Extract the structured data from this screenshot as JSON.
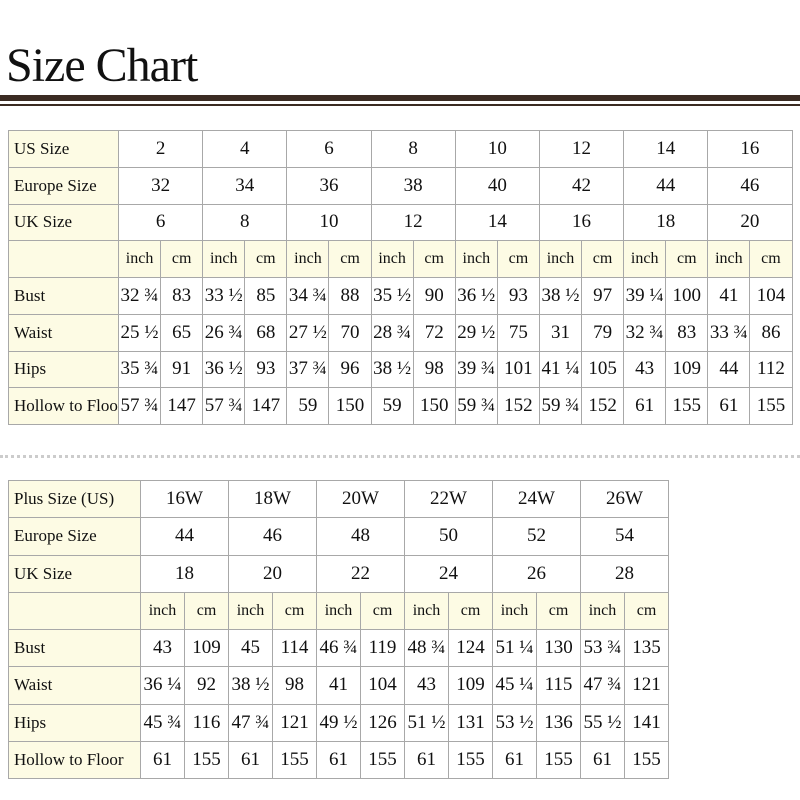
{
  "title": "Size Chart",
  "tables": [
    {
      "size_rows": [
        {
          "label": "US Size",
          "values": [
            "2",
            "4",
            "6",
            "8",
            "10",
            "12",
            "14",
            "16"
          ]
        },
        {
          "label": "Europe Size",
          "values": [
            "32",
            "34",
            "36",
            "38",
            "40",
            "42",
            "44",
            "46"
          ]
        },
        {
          "label": "UK Size",
          "values": [
            "6",
            "8",
            "10",
            "12",
            "14",
            "16",
            "18",
            "20"
          ]
        }
      ],
      "units": [
        "inch",
        "cm"
      ],
      "rows": [
        {
          "label": "Bust",
          "values": [
            "32 ¾",
            "83",
            "33 ½",
            "85",
            "34 ¾",
            "88",
            "35 ½",
            "90",
            "36 ½",
            "93",
            "38 ½",
            "97",
            "39 ¼",
            "100",
            "41",
            "104"
          ]
        },
        {
          "label": "Waist",
          "values": [
            "25 ½",
            "65",
            "26 ¾",
            "68",
            "27 ½",
            "70",
            "28 ¾",
            "72",
            "29 ½",
            "75",
            "31",
            "79",
            "32 ¾",
            "83",
            "33 ¾",
            "86"
          ]
        },
        {
          "label": "Hips",
          "values": [
            "35 ¾",
            "91",
            "36 ½",
            "93",
            "37 ¾",
            "96",
            "38 ½",
            "98",
            "39 ¾",
            "101",
            "41 ¼",
            "105",
            "43",
            "109",
            "44",
            "112"
          ]
        },
        {
          "label": "Hollow to Floor",
          "values": [
            "57 ¾",
            "147",
            "57 ¾",
            "147",
            "59",
            "150",
            "59",
            "150",
            "59 ¾",
            "152",
            "59 ¾",
            "152",
            "61",
            "155",
            "61",
            "155"
          ]
        }
      ]
    },
    {
      "size_rows": [
        {
          "label": "Plus Size (US)",
          "values": [
            "16W",
            "18W",
            "20W",
            "22W",
            "24W",
            "26W"
          ]
        },
        {
          "label": "Europe Size",
          "values": [
            "44",
            "46",
            "48",
            "50",
            "52",
            "54"
          ]
        },
        {
          "label": "UK Size",
          "values": [
            "18",
            "20",
            "22",
            "24",
            "26",
            "28"
          ]
        }
      ],
      "units": [
        "inch",
        "cm"
      ],
      "rows": [
        {
          "label": "Bust",
          "values": [
            "43",
            "109",
            "45",
            "114",
            "46 ¾",
            "119",
            "48 ¾",
            "124",
            "51 ¼",
            "130",
            "53 ¾",
            "135"
          ]
        },
        {
          "label": "Waist",
          "values": [
            "36 ¼",
            "92",
            "38 ½",
            "98",
            "41",
            "104",
            "43",
            "109",
            "45 ¼",
            "115",
            "47 ¾",
            "121"
          ]
        },
        {
          "label": "Hips",
          "values": [
            "45 ¾",
            "116",
            "47 ¾",
            "121",
            "49 ½",
            "126",
            "51 ½",
            "131",
            "53 ½",
            "136",
            "55 ½",
            "141"
          ]
        },
        {
          "label": "Hollow to Floor",
          "values": [
            "61",
            "155",
            "61",
            "155",
            "61",
            "155",
            "61",
            "155",
            "61",
            "155",
            "61",
            "155"
          ]
        }
      ]
    }
  ]
}
